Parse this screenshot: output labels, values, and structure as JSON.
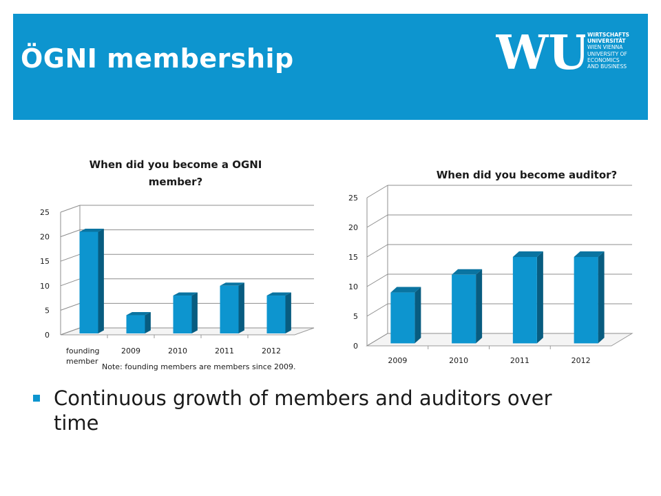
{
  "slide": {
    "title": "ÖGNI membership",
    "bullet": "Continuous growth of members and auditors over time",
    "accent_color": "#0d95cf"
  },
  "logo": {
    "mark": "WU",
    "lines": [
      "WIRTSCHAFTS",
      "UNIVERSITÄT",
      "WIEN VIENNA",
      "UNIVERSITY OF",
      "ECONOMICS",
      "AND BUSINESS"
    ]
  },
  "chart_data": [
    {
      "type": "bar",
      "title": "When did you become a OGNI member?",
      "categories": [
        "founding member",
        "2009",
        "2010",
        "2011",
        "2012"
      ],
      "values": [
        21,
        4,
        8,
        10,
        8
      ],
      "ylim": [
        0,
        25
      ],
      "yticks": [
        0,
        5,
        10,
        15,
        20,
        25
      ],
      "grid": true,
      "bar_color": "#0d95cf",
      "note": "Note: founding members are members since 2009."
    },
    {
      "type": "bar",
      "title": "When did you become auditor?",
      "categories": [
        "2009",
        "2010",
        "2011",
        "2012"
      ],
      "values": [
        9,
        12,
        15,
        15
      ],
      "ylim": [
        0,
        25
      ],
      "yticks": [
        0,
        5,
        10,
        15,
        20,
        25
      ],
      "grid": true,
      "bar_color": "#0d95cf"
    }
  ]
}
